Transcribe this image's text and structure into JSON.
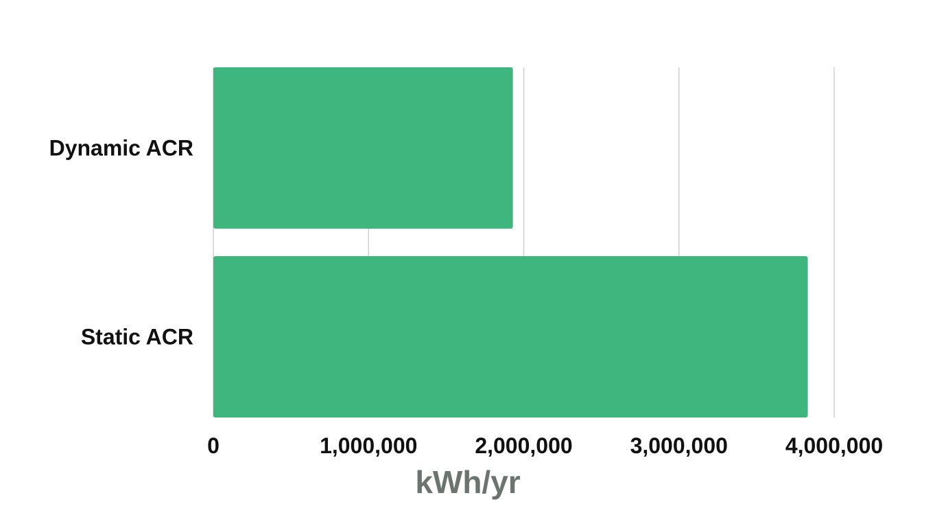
{
  "chart_data": {
    "type": "bar",
    "orientation": "horizontal",
    "categories": [
      "Dynamic ACR",
      "Static ACR"
    ],
    "values": [
      1930000,
      3830000
    ],
    "xlabel": "kWh/yr",
    "ylabel": "",
    "xlim": [
      0,
      4000000
    ],
    "xticks": [
      0,
      1000000,
      2000000,
      3000000,
      4000000
    ],
    "xtick_labels": [
      "0",
      "1,000,000",
      "2,000,000",
      "3,000,000",
      "4,000,000"
    ],
    "grid": "vertical",
    "legend": "none",
    "colors": {
      "bar": "#3fb67e",
      "grid": "#cfcfcf",
      "axis_title": "#6c7470",
      "text": "#111111"
    }
  }
}
